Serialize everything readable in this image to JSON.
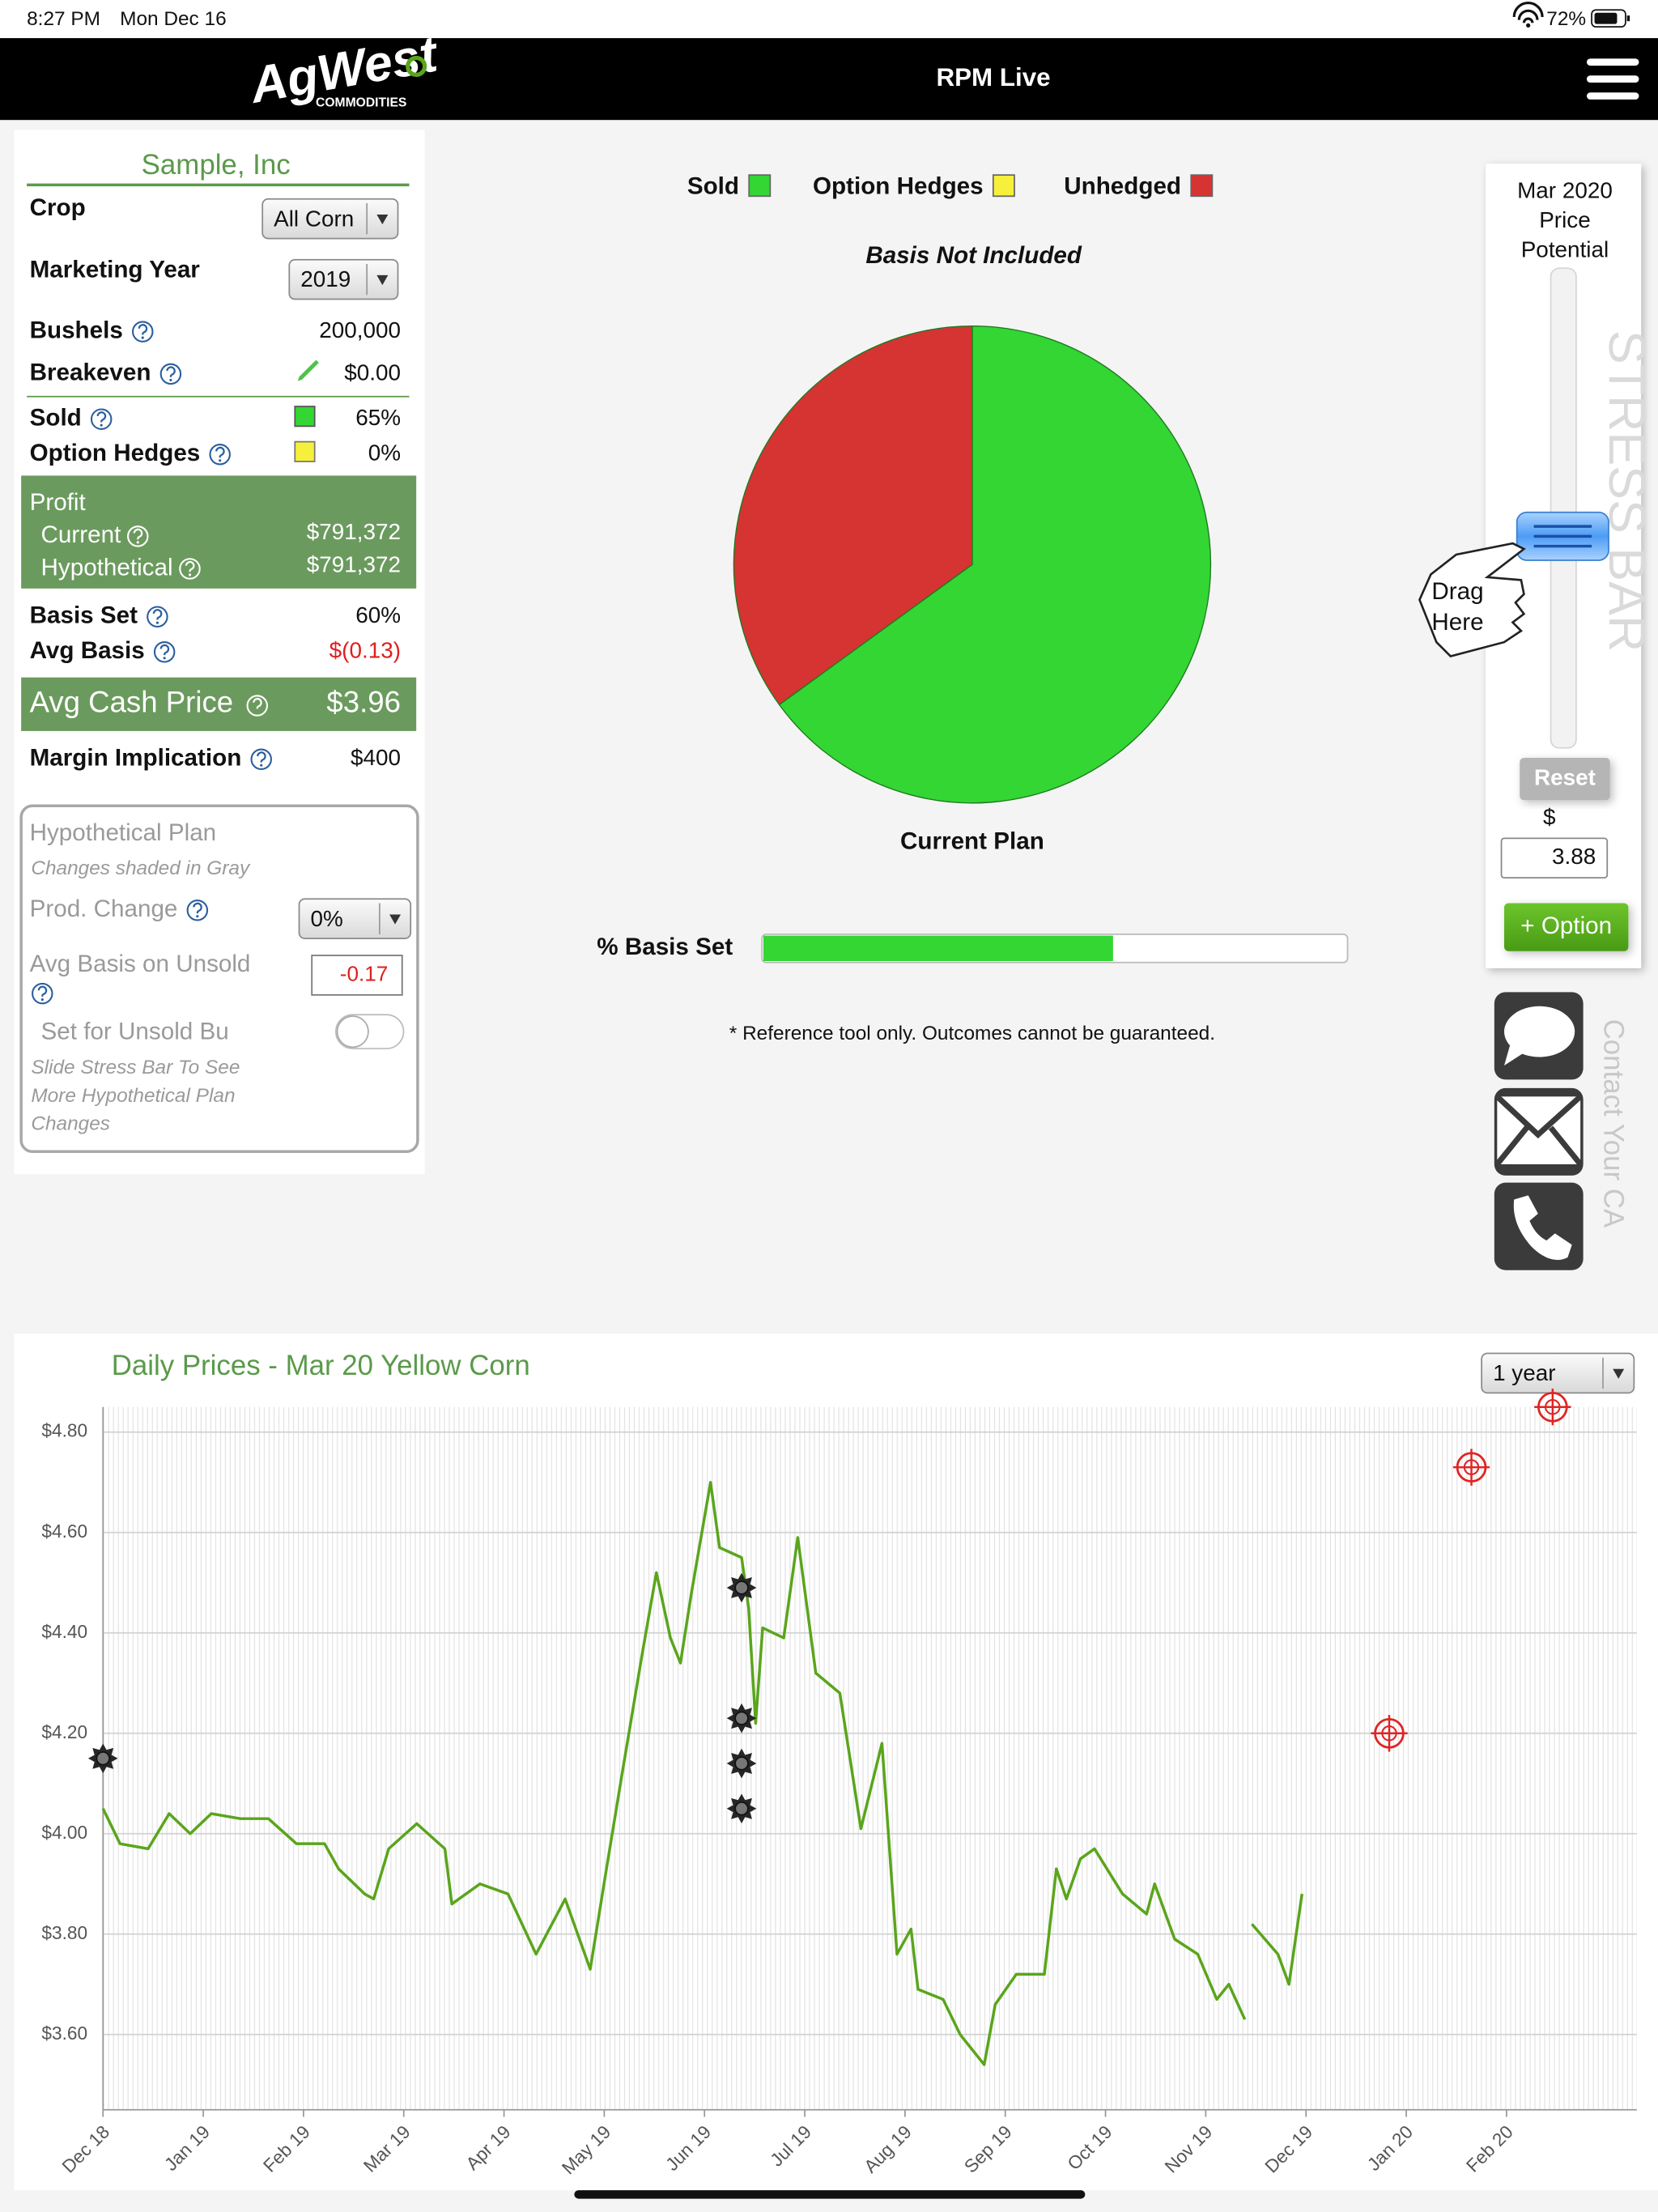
{
  "status_bar": {
    "time": "8:27 PM",
    "date": "Mon Dec 16",
    "battery": "72%"
  },
  "header": {
    "logo": "AgWest",
    "logo_sub": "COMMODITIES",
    "title": "RPM Live"
  },
  "summary": {
    "company": "Sample, Inc",
    "crop": {
      "label": "Crop",
      "value": "All Corn"
    },
    "marketing_year": {
      "label": "Marketing Year",
      "value": "2019"
    },
    "bushels": {
      "label": "Bushels",
      "value": "200,000"
    },
    "breakeven": {
      "label": "Breakeven",
      "value": "$0.00"
    },
    "sold": {
      "label": "Sold",
      "value": "65%"
    },
    "option_hedges": {
      "label": "Option Hedges",
      "value": "0%"
    },
    "profit": {
      "label": "Profit",
      "current_label": "Current",
      "current": "$791,372",
      "hypothetical_label": "Hypothetical",
      "hypothetical": "$791,372"
    },
    "basis_set": {
      "label": "Basis Set",
      "value": "60%"
    },
    "avg_basis": {
      "label": "Avg Basis",
      "value": "$(0.13)"
    },
    "avg_cash_price": {
      "label": "Avg Cash Price",
      "value": "$3.96"
    },
    "margin": {
      "label": "Margin Implication",
      "value": "$400"
    }
  },
  "hypothetical": {
    "title": "Hypothetical Plan",
    "subtitle": "Changes shaded in Gray",
    "prod_change": {
      "label": "Prod. Change",
      "value": "0%"
    },
    "avg_basis_unsold": {
      "label": "Avg Basis on Unsold",
      "value": "-0.17"
    },
    "set_unsold": "Set for Unsold Bu",
    "note": [
      "Slide Stress Bar To See",
      "More Hypothetical Plan",
      "Changes"
    ]
  },
  "chart_data": [
    {
      "type": "pie",
      "title": "Basis Not Included",
      "caption": "Current Plan",
      "categories": [
        "Sold",
        "Option Hedges",
        "Unhedged"
      ],
      "values": [
        65,
        0,
        35
      ],
      "colors": [
        "#33d633",
        "#f6f03c",
        "#d63333"
      ]
    },
    {
      "type": "line",
      "title": "Daily Prices - Mar 20 Yellow Corn",
      "xlim": [
        0,
        15.3
      ],
      "xticks": [
        {
          "value": 0,
          "label": "Dec 18"
        },
        {
          "value": 1,
          "label": "Jan 19"
        },
        {
          "value": 2,
          "label": "Feb 19"
        },
        {
          "value": 3,
          "label": "Mar 19"
        },
        {
          "value": 4,
          "label": "Apr 19"
        },
        {
          "value": 5,
          "label": "May 19"
        },
        {
          "value": 6,
          "label": "Jun 19"
        },
        {
          "value": 7,
          "label": "Jul 19"
        },
        {
          "value": 8,
          "label": "Aug 19"
        },
        {
          "value": 9,
          "label": "Sep 19"
        },
        {
          "value": 10,
          "label": "Oct 19"
        },
        {
          "value": 11,
          "label": "Nov 19"
        },
        {
          "value": 12,
          "label": "Dec 19"
        },
        {
          "value": 13,
          "label": "Jan 20"
        },
        {
          "value": 14,
          "label": "Feb 20"
        }
      ],
      "ylim": [
        3.45,
        4.85
      ],
      "yticks": [
        {
          "value": 3.6,
          "label": "$3.60"
        },
        {
          "value": 3.8,
          "label": "$3.80"
        },
        {
          "value": 4.0,
          "label": "$4.00"
        },
        {
          "value": 4.2,
          "label": "$4.20"
        },
        {
          "value": 4.4,
          "label": "$4.40"
        },
        {
          "value": 4.6,
          "label": "$4.60"
        },
        {
          "value": 4.8,
          "label": "$4.80"
        }
      ],
      "grid": true,
      "series": [
        {
          "type": "line",
          "color": "#5aa51c",
          "x": [
            0,
            0.17,
            0.45,
            0.66,
            0.87,
            1.08,
            1.37,
            1.65,
            1.93,
            2.21,
            2.35,
            2.61,
            2.7,
            2.85,
            3.13,
            3.41,
            3.48,
            3.76,
            4.04,
            4.32,
            4.61,
            4.86,
            5.03,
            5.17,
            5.38,
            5.52,
            5.66,
            5.76,
            5.87,
            6.06,
            6.15,
            6.37,
            6.44,
            6.51,
            6.58,
            6.79,
            6.93,
            7.11,
            7.35,
            7.56,
            7.77,
            7.92,
            8.06,
            8.13,
            8.38,
            8.55,
            8.79,
            8.9,
            9.11,
            9.39,
            9.51,
            9.61,
            9.75,
            9.89,
            10.17,
            10.41,
            10.49,
            10.69,
            10.92,
            11.11,
            11.23,
            11.39,
            11.42,
            11.46,
            11.72,
            11.83,
            11.96
          ],
          "values": [
            4.05,
            3.98,
            3.97,
            4.04,
            4.0,
            4.04,
            4.03,
            4.03,
            3.98,
            3.98,
            3.93,
            3.88,
            3.87,
            3.97,
            4.02,
            3.97,
            3.86,
            3.9,
            3.88,
            3.76,
            3.87,
            3.73,
            3.94,
            4.11,
            4.36,
            4.52,
            4.39,
            4.34,
            4.48,
            4.7,
            4.57,
            4.55,
            4.45,
            4.22,
            4.41,
            4.39,
            4.59,
            4.32,
            4.28,
            4.01,
            4.18,
            3.76,
            3.81,
            3.69,
            3.67,
            3.6,
            3.54,
            3.66,
            3.72,
            3.72,
            3.93,
            3.87,
            3.95,
            3.97,
            3.88,
            3.84,
            3.9,
            3.79,
            3.76,
            3.67,
            3.7,
            3.63,
            null,
            3.82,
            3.76,
            3.7,
            3.88
          ]
        },
        {
          "type": "scatter",
          "marker": "bullet",
          "color": "#262626",
          "x": [
            0,
            6.37,
            6.37,
            6.37,
            6.37
          ],
          "values": [
            4.15,
            4.49,
            4.23,
            4.14,
            4.05
          ]
        },
        {
          "type": "scatter",
          "marker": "target",
          "color": "#e02424",
          "x": [
            12.83,
            13.65,
            14.46
          ],
          "values": [
            4.2,
            4.73,
            4.85
          ]
        }
      ]
    }
  ],
  "basis_progress": {
    "label": "% Basis Set",
    "value": 60,
    "max": 100
  },
  "disclaimer": "* Reference tool only. Outcomes cannot be guaranteed.",
  "stress_bar": {
    "title": [
      "Mar 2020",
      "Price",
      "Potential"
    ],
    "bar_label": "STRESS BAR",
    "hint": [
      "Drag",
      "Here"
    ],
    "reset": "Reset",
    "currency": "$",
    "price": "3.88",
    "option_button": "+ Option"
  },
  "contact": {
    "label": "Contact Your CA"
  },
  "range_select": "1 year"
}
